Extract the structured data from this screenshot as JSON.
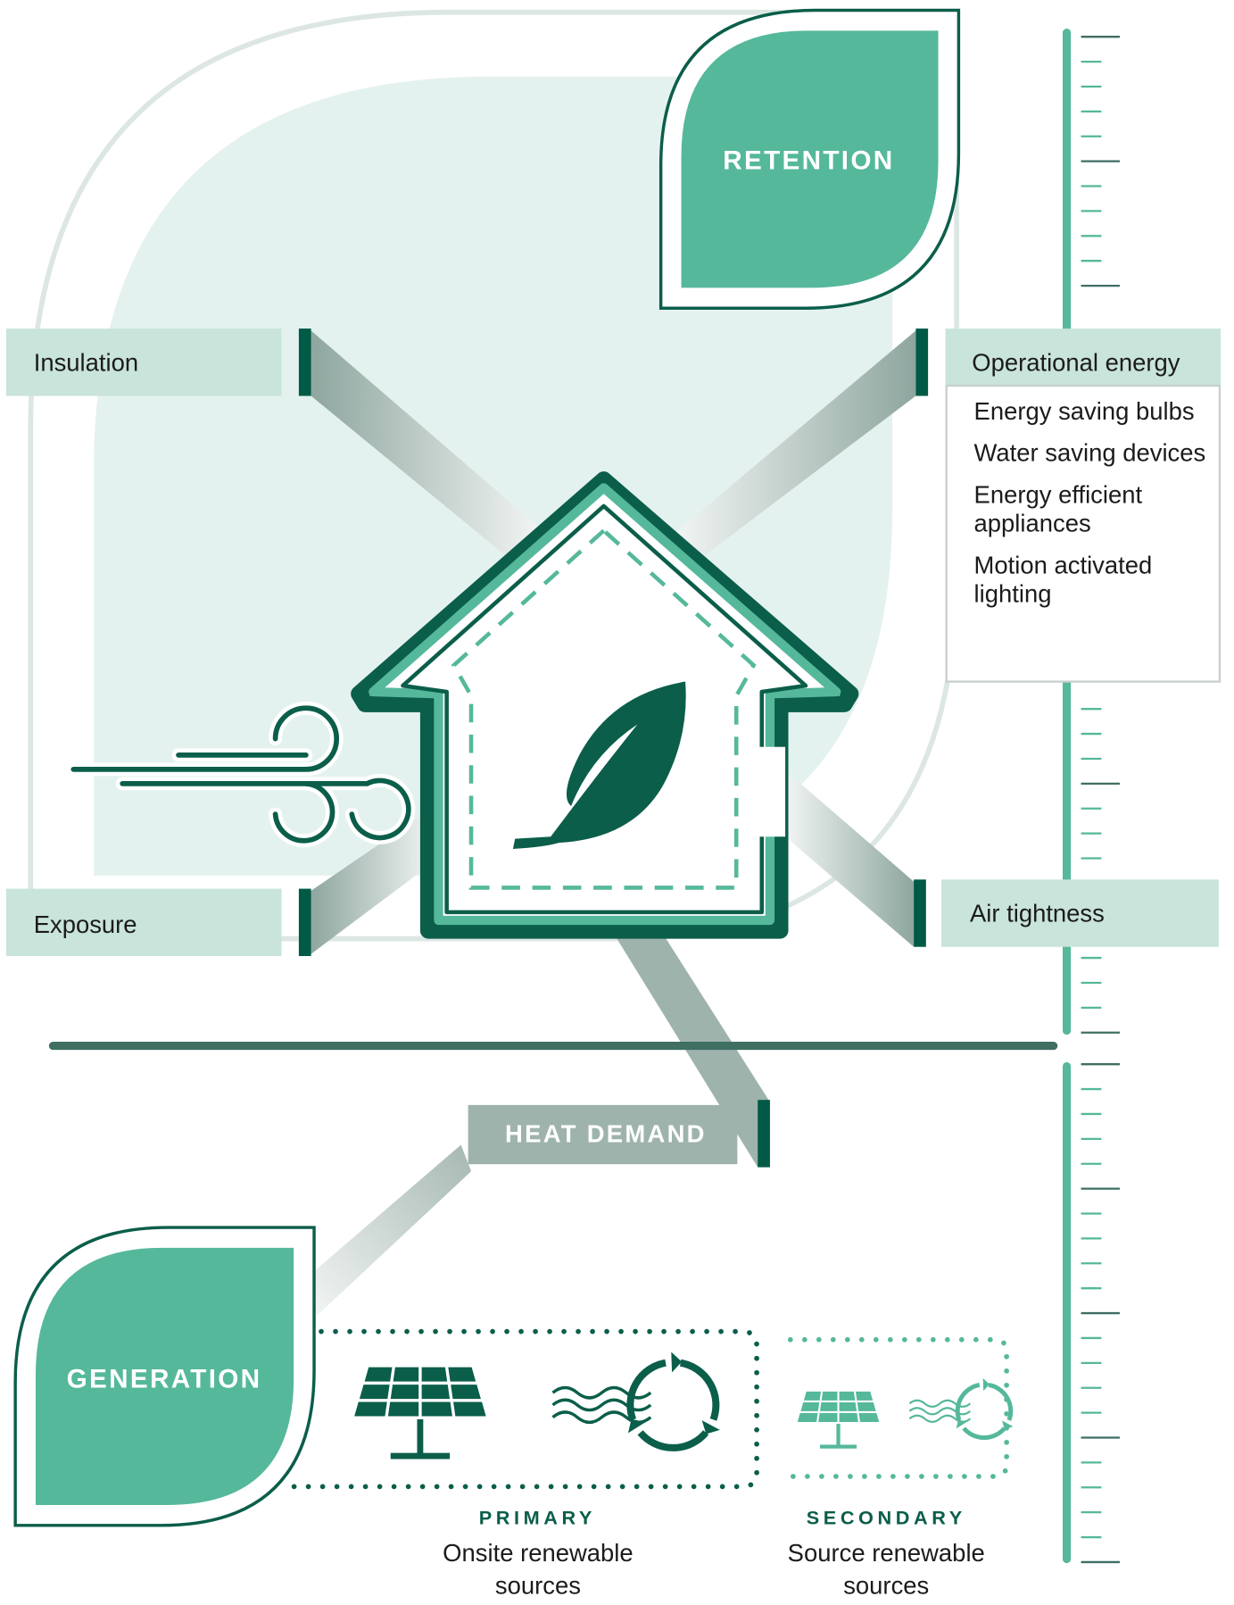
{
  "retention": "RETENTION",
  "generation": "GENERATION",
  "factors": {
    "insulation": "Insulation",
    "operational_energy": {
      "title": "Operational energy",
      "items": [
        "Energy saving bulbs",
        "Water saving devices",
        "Energy efficient appliances",
        "Motion activated lighting"
      ]
    },
    "exposure": "Exposure",
    "air_tightness": "Air tightness",
    "heat_demand": "HEAT DEMAND"
  },
  "sources": {
    "primary": {
      "tag": "PRIMARY",
      "description": "Onsite renewable sources"
    },
    "secondary": {
      "tag": "SECONDARY",
      "description": "Source renewable sources"
    }
  }
}
